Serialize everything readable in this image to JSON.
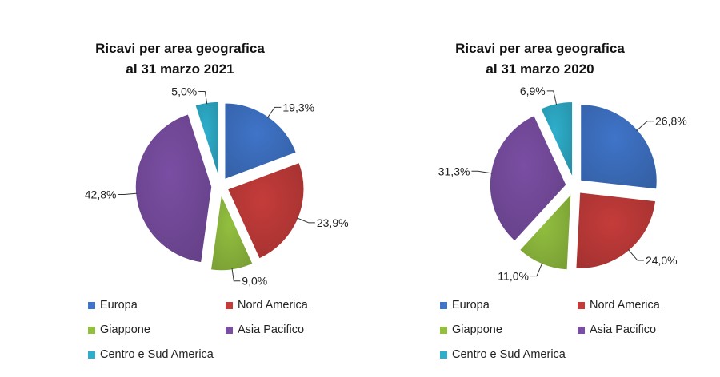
{
  "chart_data": [
    {
      "type": "pie",
      "title_line1": "Ricavi per area geografica",
      "title_line2": "al 31 marzo 2021",
      "categories": [
        "Europa",
        "Nord America",
        "Giappone",
        "Asia Pacifico",
        "Centro e Sud America"
      ],
      "values": [
        19.3,
        23.9,
        9.0,
        42.8,
        5.0
      ],
      "labels": [
        "19,3%",
        "23,9%",
        "9,0%",
        "42,8%",
        "5,0%"
      ],
      "colors": [
        "#3f74c8",
        "#c43c3a",
        "#92bf3f",
        "#7a4ea3",
        "#2eaecb"
      ]
    },
    {
      "type": "pie",
      "title_line1": "Ricavi per area geografica",
      "title_line2": "al 31 marzo 2020",
      "categories": [
        "Europa",
        "Nord America",
        "Giappone",
        "Asia Pacifico",
        "Centro e Sud America"
      ],
      "values": [
        26.8,
        24.0,
        11.0,
        31.3,
        6.9
      ],
      "labels": [
        "26,8%",
        "24,0%",
        "11,0%",
        "31,3%",
        "6,9%"
      ],
      "colors": [
        "#3f74c8",
        "#c43c3a",
        "#92bf3f",
        "#7a4ea3",
        "#2eaecb"
      ]
    }
  ]
}
